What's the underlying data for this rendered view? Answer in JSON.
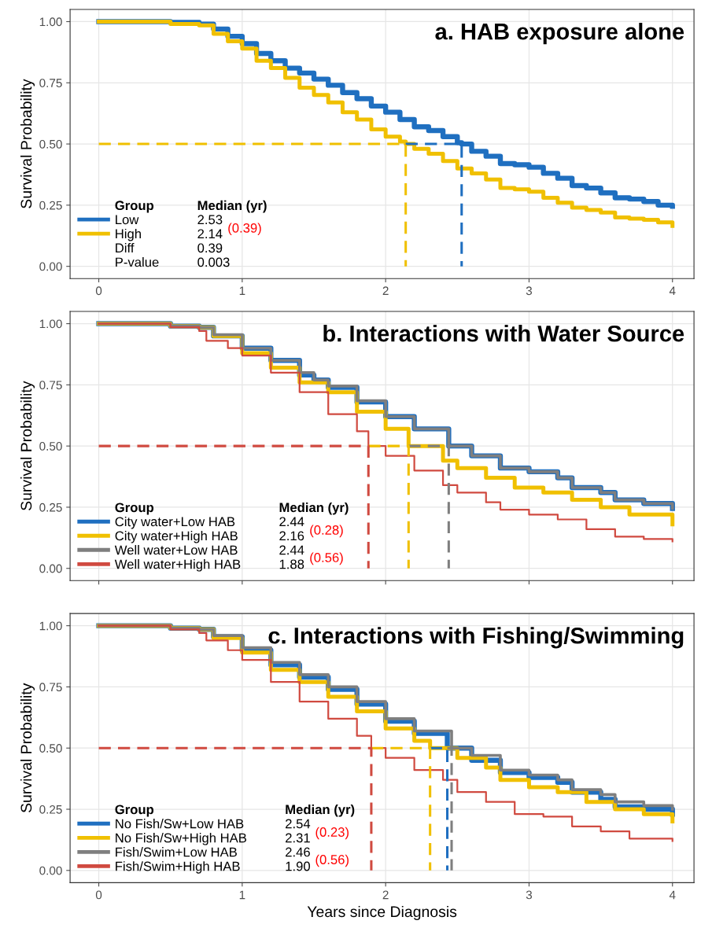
{
  "chart_data": [
    {
      "type": "step",
      "title": "a. HAB exposure alone",
      "ylabel": "Survival Probability",
      "legend_title": "Group",
      "legend": "bottom left",
      "grid": true,
      "xlim": [
        -0.2,
        4.15
      ],
      "ylim": [
        -0.05,
        1.05
      ],
      "xticks": [
        0,
        1,
        2,
        3,
        4
      ],
      "yticks": [
        {
          "value": 0,
          "label": "0.00"
        },
        {
          "value": 0.25,
          "label": "0.25"
        },
        {
          "value": 0.5,
          "label": "0.50"
        },
        {
          "value": 0.75,
          "label": "0.75"
        },
        {
          "value": 1,
          "label": "1.00"
        }
      ],
      "annotations": [
        "Median (yr)",
        "2.53",
        "2.14",
        "(0.39)",
        "Diff",
        "0.39",
        "P-value",
        "0.003"
      ],
      "series": [
        {
          "name": "Low",
          "color": "#1f6fc0",
          "x": [
            0,
            0.5,
            0.7,
            0.8,
            0.9,
            1.0,
            1.1,
            1.2,
            1.3,
            1.4,
            1.5,
            1.6,
            1.7,
            1.8,
            1.9,
            2.0,
            2.1,
            2.2,
            2.3,
            2.4,
            2.5,
            2.53,
            2.6,
            2.7,
            2.8,
            2.9,
            3.0,
            3.1,
            3.2,
            3.3,
            3.4,
            3.5,
            3.6,
            3.7,
            3.8,
            3.9,
            4.0
          ],
          "values": [
            1,
            0.997,
            0.99,
            0.97,
            0.94,
            0.91,
            0.87,
            0.84,
            0.81,
            0.79,
            0.765,
            0.74,
            0.71,
            0.685,
            0.655,
            0.63,
            0.6,
            0.57,
            0.555,
            0.53,
            0.505,
            0.5,
            0.47,
            0.45,
            0.42,
            0.415,
            0.405,
            0.38,
            0.36,
            0.33,
            0.32,
            0.3,
            0.28,
            0.275,
            0.265,
            0.25,
            0.245
          ]
        },
        {
          "name": "High",
          "color": "#f0c000",
          "x": [
            0,
            0.5,
            0.7,
            0.8,
            0.9,
            1.0,
            1.1,
            1.2,
            1.3,
            1.4,
            1.5,
            1.6,
            1.7,
            1.8,
            1.9,
            2.0,
            2.1,
            2.14,
            2.2,
            2.3,
            2.4,
            2.5,
            2.6,
            2.7,
            2.8,
            2.9,
            3.0,
            3.1,
            3.2,
            3.3,
            3.4,
            3.5,
            3.6,
            3.7,
            3.8,
            3.9,
            4.0
          ],
          "values": [
            1,
            0.99,
            0.985,
            0.95,
            0.92,
            0.89,
            0.84,
            0.81,
            0.77,
            0.73,
            0.7,
            0.67,
            0.63,
            0.6,
            0.56,
            0.53,
            0.51,
            0.5,
            0.48,
            0.46,
            0.43,
            0.4,
            0.38,
            0.355,
            0.32,
            0.315,
            0.305,
            0.28,
            0.26,
            0.24,
            0.23,
            0.22,
            0.2,
            0.195,
            0.19,
            0.18,
            0.165
          ]
        },
        {
          "type": "line",
          "line_style": "dashed",
          "color": "#1f6fc0",
          "x": [
            2.14,
            2.53,
            2.53
          ],
          "values": [
            0.5,
            0.5,
            0
          ]
        },
        {
          "type": "line",
          "line_style": "dashed",
          "color": "#f0c000",
          "x": [
            0,
            2.14,
            2.14
          ],
          "values": [
            0.5,
            0.5,
            0
          ]
        }
      ]
    },
    {
      "type": "step",
      "title": "b. Interactions with Water Source",
      "ylabel": "Survival Probability",
      "legend_title": "Group",
      "legend": "bottom left",
      "grid": true,
      "tick_labels": "y",
      "xlim": [
        -0.2,
        4.15
      ],
      "ylim": [
        -0.05,
        1.05
      ],
      "xticks": [
        0,
        1,
        2,
        3,
        4
      ],
      "yticks": [
        {
          "value": 0,
          "label": "0.00"
        },
        {
          "value": 0.25,
          "label": "0.25"
        },
        {
          "value": 0.5,
          "label": "0.50"
        },
        {
          "value": 0.75,
          "label": "0.75"
        },
        {
          "value": 1,
          "label": "1.00"
        }
      ],
      "annotations": [
        "Median (yr)",
        "2.44",
        "2.16",
        "2.44",
        "1.88",
        "(0.28)",
        "(0.56)"
      ],
      "series": [
        {
          "name": "City water+Low HAB",
          "color": "#1f6fc0",
          "x": [
            0,
            0.5,
            0.7,
            0.8,
            1.0,
            1.2,
            1.4,
            1.5,
            1.6,
            1.8,
            2.0,
            2.2,
            2.44,
            2.6,
            2.8,
            3.0,
            3.2,
            3.3,
            3.5,
            3.6,
            3.8,
            4.0
          ],
          "values": [
            1,
            0.99,
            0.985,
            0.95,
            0.9,
            0.85,
            0.79,
            0.77,
            0.74,
            0.68,
            0.62,
            0.57,
            0.5,
            0.46,
            0.41,
            0.395,
            0.37,
            0.33,
            0.31,
            0.28,
            0.265,
            0.245
          ]
        },
        {
          "name": "City water+High HAB",
          "color": "#f0c000",
          "x": [
            0,
            0.5,
            0.7,
            0.8,
            1.0,
            1.2,
            1.4,
            1.6,
            1.8,
            2.0,
            2.16,
            2.4,
            2.5,
            2.7,
            2.9,
            3.1,
            3.3,
            3.5,
            3.7,
            4.0
          ],
          "values": [
            1,
            0.99,
            0.985,
            0.95,
            0.88,
            0.82,
            0.76,
            0.72,
            0.64,
            0.57,
            0.5,
            0.44,
            0.41,
            0.37,
            0.33,
            0.31,
            0.28,
            0.25,
            0.22,
            0.18
          ]
        },
        {
          "name": "Well water+Low HAB",
          "color": "#7f7f7f",
          "x": [
            0,
            0.5,
            0.7,
            0.8,
            1.0,
            1.2,
            1.4,
            1.5,
            1.6,
            1.8,
            2.0,
            2.2,
            2.44,
            2.6,
            2.8,
            3.0,
            3.2,
            3.3,
            3.5,
            3.6,
            3.8,
            4.0
          ],
          "values": [
            1,
            0.99,
            0.985,
            0.955,
            0.9,
            0.85,
            0.8,
            0.77,
            0.745,
            0.685,
            0.62,
            0.57,
            0.5,
            0.46,
            0.41,
            0.395,
            0.37,
            0.33,
            0.31,
            0.28,
            0.265,
            0.245
          ]
        },
        {
          "name": "Well water+High HAB",
          "color": "#d04a40",
          "x": [
            0,
            0.5,
            0.7,
            0.75,
            0.9,
            1.0,
            1.2,
            1.4,
            1.6,
            1.8,
            1.88,
            2.0,
            2.2,
            2.4,
            2.5,
            2.7,
            2.8,
            3.0,
            3.2,
            3.4,
            3.6,
            3.8,
            4.0
          ],
          "values": [
            1,
            0.985,
            0.97,
            0.93,
            0.9,
            0.87,
            0.8,
            0.72,
            0.63,
            0.56,
            0.5,
            0.46,
            0.4,
            0.34,
            0.31,
            0.27,
            0.24,
            0.22,
            0.2,
            0.16,
            0.13,
            0.12,
            0.11
          ]
        },
        {
          "type": "line",
          "line_style": "dashed",
          "color": "#7f7f7f",
          "x": [
            2.16,
            2.44,
            2.44
          ],
          "values": [
            0.5,
            0.5,
            0
          ]
        },
        {
          "type": "line",
          "line_style": "dashed",
          "color": "#f0c000",
          "x": [
            1.88,
            2.16,
            2.16
          ],
          "values": [
            0.5,
            0.5,
            0
          ]
        },
        {
          "type": "line",
          "line_style": "dashed",
          "color": "#d04a40",
          "x": [
            0,
            1.88,
            1.88
          ],
          "values": [
            0.5,
            0.5,
            0
          ]
        }
      ]
    },
    {
      "type": "step",
      "title": "c. Interactions with Fishing/Swimming",
      "xlabel": "Years since Diagnosis",
      "ylabel": "Survival Probability",
      "legend_title": "Group",
      "legend": "bottom left",
      "grid": true,
      "xlim": [
        -0.2,
        4.15
      ],
      "ylim": [
        -0.05,
        1.05
      ],
      "xticks": [
        0,
        1,
        2,
        3,
        4
      ],
      "yticks": [
        {
          "value": 0,
          "label": "0.00"
        },
        {
          "value": 0.25,
          "label": "0.25"
        },
        {
          "value": 0.5,
          "label": "0.50"
        },
        {
          "value": 0.75,
          "label": "0.75"
        },
        {
          "value": 1,
          "label": "1.00"
        }
      ],
      "annotations": [
        "Median (yr)",
        "2.54",
        "2.31",
        "2.46",
        "1.90",
        "(0.23)",
        "(0.56)"
      ],
      "series": [
        {
          "name": "No Fish/Sw+Low HAB",
          "color": "#1f6fc0",
          "x": [
            0,
            0.5,
            0.7,
            0.8,
            1.0,
            1.2,
            1.4,
            1.6,
            1.8,
            2.0,
            2.2,
            2.43,
            2.6,
            2.8,
            3.0,
            3.2,
            3.3,
            3.5,
            3.6,
            3.8,
            4.0
          ],
          "values": [
            1,
            0.99,
            0.985,
            0.955,
            0.9,
            0.84,
            0.79,
            0.74,
            0.68,
            0.61,
            0.56,
            0.5,
            0.45,
            0.4,
            0.38,
            0.36,
            0.32,
            0.29,
            0.26,
            0.25,
            0.23
          ]
        },
        {
          "name": "No Fish/Sw+High HAB",
          "color": "#f0c000",
          "x": [
            0,
            0.5,
            0.7,
            0.8,
            1.0,
            1.2,
            1.4,
            1.6,
            1.8,
            2.0,
            2.2,
            2.31,
            2.5,
            2.7,
            2.8,
            3.0,
            3.2,
            3.4,
            3.6,
            3.8,
            4.0
          ],
          "values": [
            1,
            0.99,
            0.985,
            0.95,
            0.89,
            0.82,
            0.77,
            0.71,
            0.65,
            0.58,
            0.53,
            0.5,
            0.46,
            0.42,
            0.37,
            0.34,
            0.32,
            0.28,
            0.25,
            0.23,
            0.2
          ]
        },
        {
          "name": "Fish/Swim+Low HAB",
          "color": "#7f7f7f",
          "x": [
            0,
            0.5,
            0.7,
            0.8,
            1.0,
            1.2,
            1.4,
            1.6,
            1.8,
            2.0,
            2.2,
            2.46,
            2.6,
            2.8,
            3.0,
            3.2,
            3.3,
            3.5,
            3.6,
            3.8,
            4.0
          ],
          "values": [
            1,
            0.99,
            0.985,
            0.96,
            0.91,
            0.85,
            0.8,
            0.75,
            0.69,
            0.62,
            0.57,
            0.5,
            0.47,
            0.41,
            0.39,
            0.37,
            0.33,
            0.31,
            0.28,
            0.265,
            0.25
          ]
        },
        {
          "name": "Fish/Swim+High HAB",
          "color": "#d04a40",
          "x": [
            0,
            0.5,
            0.7,
            0.75,
            0.9,
            1.0,
            1.2,
            1.4,
            1.6,
            1.8,
            1.9,
            2.0,
            2.2,
            2.4,
            2.5,
            2.7,
            2.9,
            3.1,
            3.3,
            3.5,
            3.7,
            4.0
          ],
          "values": [
            1,
            0.985,
            0.97,
            0.94,
            0.9,
            0.86,
            0.77,
            0.69,
            0.62,
            0.55,
            0.5,
            0.46,
            0.41,
            0.37,
            0.32,
            0.28,
            0.23,
            0.22,
            0.18,
            0.16,
            0.13,
            0.12
          ]
        },
        {
          "type": "line",
          "line_style": "dashed",
          "color": "#1f6fc0",
          "x": [
            2.31,
            2.43,
            2.43
          ],
          "values": [
            0.5,
            0.5,
            0
          ]
        },
        {
          "type": "line",
          "line_style": "dashed",
          "color": "#7f7f7f",
          "x": [
            2.43,
            2.46,
            2.46
          ],
          "values": [
            0.5,
            0.5,
            0
          ]
        },
        {
          "type": "line",
          "line_style": "dashed",
          "color": "#f0c000",
          "x": [
            1.9,
            2.31,
            2.31
          ],
          "values": [
            0.5,
            0.5,
            0
          ]
        },
        {
          "type": "line",
          "line_style": "dashed",
          "color": "#d04a40",
          "x": [
            0,
            1.9,
            1.9
          ],
          "values": [
            0.5,
            0.5,
            0
          ]
        }
      ]
    }
  ]
}
